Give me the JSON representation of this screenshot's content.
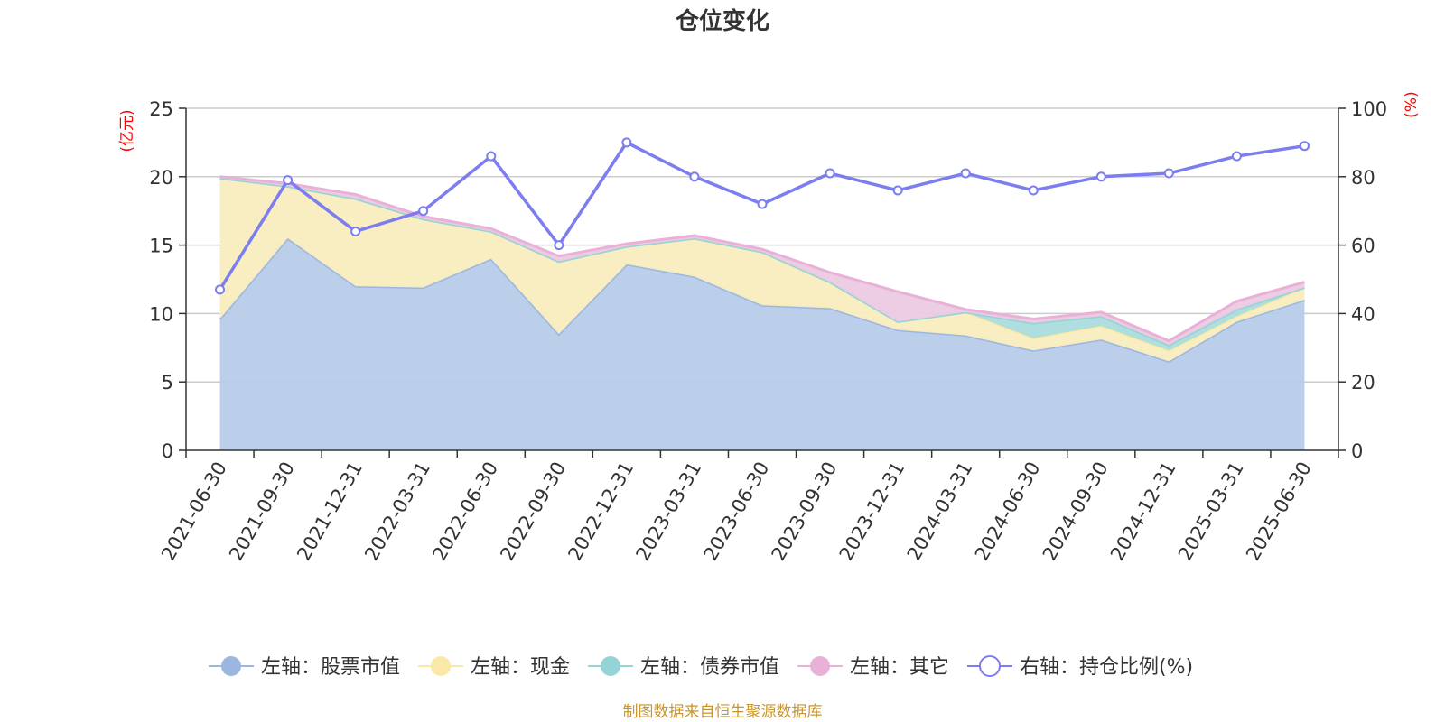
{
  "title": "仓位变化",
  "source": "制图数据来自恒生聚源数据库",
  "chart_data": {
    "type": "area",
    "categories": [
      "2021-06-30",
      "2021-09-30",
      "2021-12-31",
      "2022-03-31",
      "2022-06-30",
      "2022-09-30",
      "2022-12-31",
      "2023-03-31",
      "2023-06-30",
      "2023-09-30",
      "2023-12-31",
      "2024-03-31",
      "2024-06-30",
      "2024-09-30",
      "2024-12-31",
      "2025-03-31",
      "2025-06-30"
    ],
    "left_axis": {
      "unit": "(亿元)",
      "ylim": [
        0,
        25
      ],
      "ticks": [
        0,
        5,
        10,
        15,
        20,
        25
      ]
    },
    "right_axis": {
      "unit": "(%)",
      "ylim": [
        0,
        100
      ],
      "ticks": [
        0,
        20,
        40,
        60,
        80,
        100
      ]
    },
    "grid": true,
    "legend_position": "bottom",
    "stacked_series": [
      {
        "name": "左轴：股票市值",
        "axis": "left",
        "color": "#9bb7e0",
        "fill": "#b7cbe9",
        "values": [
          9.6,
          15.5,
          12.0,
          11.9,
          14.0,
          8.5,
          13.6,
          12.7,
          10.6,
          10.4,
          8.8,
          8.4,
          7.3,
          8.1,
          6.5,
          9.4,
          11.0
        ]
      },
      {
        "name": "左轴：现金",
        "axis": "left",
        "color": "#f9e8a6",
        "fill": "#f9edbf",
        "values": [
          10.3,
          3.8,
          6.4,
          5.0,
          2.0,
          5.3,
          1.3,
          2.8,
          3.9,
          1.9,
          0.6,
          1.7,
          0.9,
          1.0,
          0.8,
          0.4,
          0.9
        ]
      },
      {
        "name": "左轴：债券市值",
        "axis": "left",
        "color": "#94d3d6",
        "fill": "#abdcdc",
        "values": [
          0,
          0,
          0,
          0,
          0,
          0,
          0,
          0,
          0,
          0,
          0,
          0,
          1.1,
          0.7,
          0.4,
          0.5,
          0
        ]
      },
      {
        "name": "左轴：其它",
        "axis": "left",
        "color": "#e9b1d7",
        "fill": "#ebcae2",
        "values": [
          0.1,
          0.2,
          0.3,
          0.2,
          0.2,
          0.4,
          0.2,
          0.2,
          0.2,
          0.7,
          2.2,
          0.2,
          0.3,
          0.3,
          0.3,
          0.6,
          0.4
        ]
      }
    ],
    "line_series": {
      "name": "右轴：持仓比例(%)",
      "axis": "right",
      "color": "#7b7df0",
      "values": [
        47,
        79,
        64,
        70,
        86,
        60,
        90,
        80,
        72,
        81,
        76,
        81,
        76,
        80,
        81,
        86,
        89
      ]
    }
  }
}
